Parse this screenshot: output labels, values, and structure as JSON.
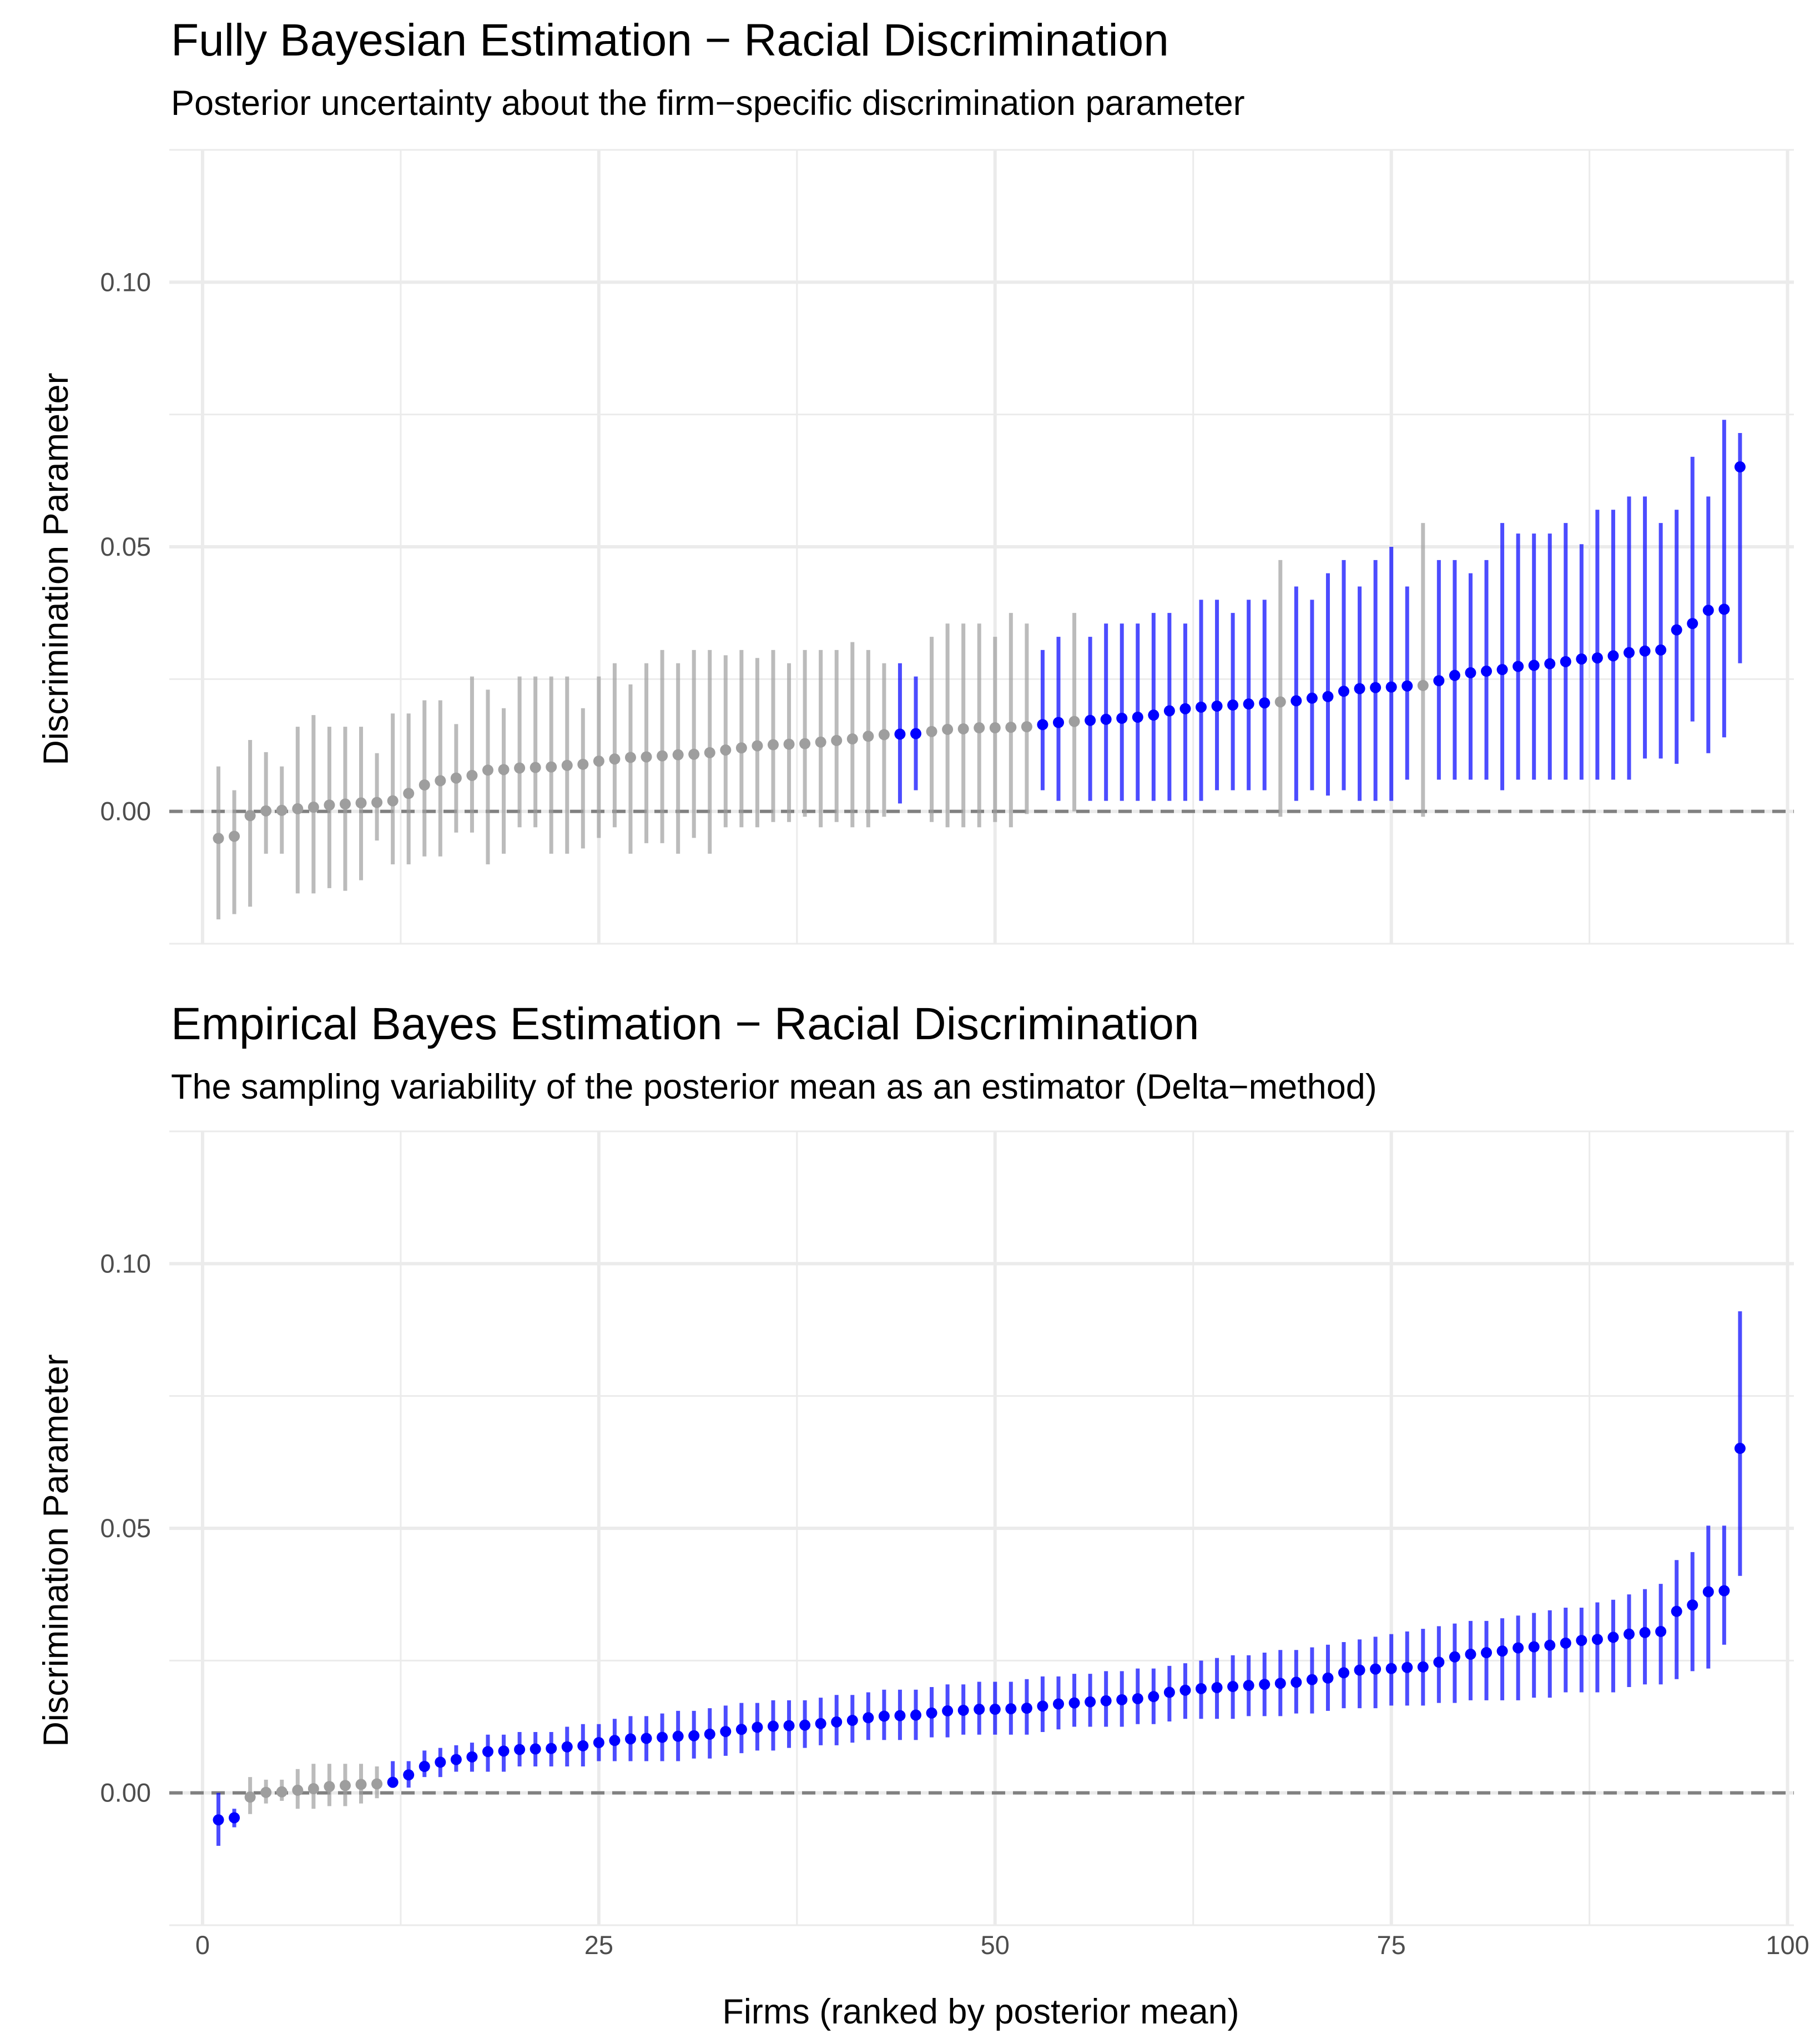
{
  "chart_data": [
    {
      "type": "errorbar-scatter",
      "title": "Fully Bayesian Estimation − Racial Discrimination",
      "subtitle": "Posterior uncertainty about the firm−specific discrimination parameter",
      "xlabel": "",
      "ylabel": "Discrimination Parameter",
      "xlim": [
        -2.1,
        100.4
      ],
      "ylim": [
        -0.025,
        0.125
      ],
      "x_ticks": [
        0,
        25,
        50,
        75,
        100
      ],
      "x_tick_labels": [],
      "y_ticks": [
        0.0,
        0.05,
        0.1
      ],
      "y_tick_labels": [
        "0.00",
        "0.05",
        "0.10"
      ],
      "reference_line": 0,
      "colors": {
        "significant": "#0000ff",
        "not_significant": "#9e9e9e",
        "interval_alpha": 0.7
      },
      "x": [
        1,
        2,
        3,
        4,
        5,
        6,
        7,
        8,
        9,
        10,
        11,
        12,
        13,
        14,
        15,
        16,
        17,
        18,
        19,
        20,
        21,
        22,
        23,
        24,
        25,
        26,
        27,
        28,
        29,
        30,
        31,
        32,
        33,
        34,
        35,
        36,
        37,
        38,
        39,
        40,
        41,
        42,
        43,
        44,
        45,
        46,
        47,
        48,
        49,
        50,
        51,
        52,
        53,
        54,
        55,
        56,
        57,
        58,
        59,
        60,
        61,
        62,
        63,
        64,
        65,
        66,
        67,
        68,
        69,
        70,
        71,
        72,
        73,
        74,
        75,
        76,
        77,
        78,
        79,
        80,
        81,
        82,
        83,
        84,
        85,
        86,
        87,
        88,
        89,
        90,
        91,
        92,
        93,
        94,
        95,
        96,
        97
      ],
      "mean": [
        -0.0051,
        -0.0047,
        -0.0008,
        0.0001,
        0.0002,
        0.0005,
        0.0008,
        0.0012,
        0.0014,
        0.0016,
        0.0017,
        0.002,
        0.0034,
        0.005,
        0.0058,
        0.0063,
        0.0068,
        0.0078,
        0.0079,
        0.0082,
        0.0083,
        0.0084,
        0.0087,
        0.0089,
        0.0095,
        0.0099,
        0.0102,
        0.0103,
        0.0105,
        0.0107,
        0.0108,
        0.0111,
        0.0116,
        0.012,
        0.0124,
        0.0126,
        0.0127,
        0.0128,
        0.0131,
        0.0134,
        0.0137,
        0.0142,
        0.0145,
        0.0146,
        0.0147,
        0.0151,
        0.0155,
        0.0156,
        0.0158,
        0.0158,
        0.0159,
        0.016,
        0.0164,
        0.0168,
        0.017,
        0.0172,
        0.0174,
        0.0176,
        0.0178,
        0.0182,
        0.019,
        0.0194,
        0.0197,
        0.0199,
        0.0201,
        0.0203,
        0.0205,
        0.0207,
        0.0209,
        0.0214,
        0.0217,
        0.0227,
        0.0232,
        0.0234,
        0.0235,
        0.0237,
        0.0238,
        0.0247,
        0.0257,
        0.0262,
        0.0265,
        0.0268,
        0.0274,
        0.0276,
        0.0279,
        0.0283,
        0.0288,
        0.029,
        0.0294,
        0.03,
        0.0303,
        0.0305,
        0.0343,
        0.0355,
        0.038,
        0.0382,
        0.0651
      ],
      "lower": [
        -0.0204,
        -0.0194,
        -0.018,
        -0.008,
        -0.008,
        -0.0155,
        -0.0155,
        -0.0145,
        -0.015,
        -0.013,
        -0.0055,
        -0.01,
        -0.01,
        -0.0085,
        -0.0085,
        -0.004,
        -0.004,
        -0.01,
        -0.008,
        -0.003,
        -0.003,
        -0.008,
        -0.008,
        -0.007,
        -0.005,
        -0.003,
        -0.008,
        -0.006,
        -0.006,
        -0.008,
        -0.005,
        -0.008,
        -0.003,
        -0.003,
        -0.003,
        -0.002,
        -0.002,
        -0.001,
        -0.003,
        -0.002,
        -0.003,
        -0.003,
        -0.001,
        0.0015,
        0.004,
        -0.002,
        -0.003,
        -0.003,
        -0.003,
        -0.002,
        -0.003,
        -0.0005,
        0.004,
        0.002,
        0.0,
        0.002,
        0.002,
        0.002,
        0.002,
        0.002,
        0.002,
        0.002,
        0.002,
        0.004,
        0.004,
        0.004,
        0.004,
        -0.001,
        0.002,
        0.004,
        0.003,
        0.004,
        0.002,
        0.002,
        0.002,
        0.006,
        -0.001,
        0.006,
        0.006,
        0.006,
        0.006,
        0.004,
        0.006,
        0.006,
        0.006,
        0.006,
        0.006,
        0.006,
        0.006,
        0.006,
        0.01,
        0.01,
        0.009,
        0.017,
        0.011,
        0.014,
        0.028
      ],
      "upper": [
        0.0085,
        0.004,
        0.0135,
        0.0112,
        0.0085,
        0.016,
        0.0182,
        0.016,
        0.016,
        0.016,
        0.011,
        0.0185,
        0.0185,
        0.021,
        0.021,
        0.0165,
        0.0255,
        0.023,
        0.0195,
        0.0255,
        0.0255,
        0.0255,
        0.0255,
        0.0195,
        0.0255,
        0.028,
        0.024,
        0.028,
        0.0305,
        0.028,
        0.0305,
        0.0305,
        0.0295,
        0.0305,
        0.029,
        0.0305,
        0.028,
        0.0305,
        0.0305,
        0.0305,
        0.032,
        0.0305,
        0.028,
        0.028,
        0.0255,
        0.033,
        0.0355,
        0.0355,
        0.0355,
        0.033,
        0.0375,
        0.0355,
        0.0305,
        0.033,
        0.0375,
        0.033,
        0.0355,
        0.0355,
        0.0355,
        0.0375,
        0.0375,
        0.0355,
        0.04,
        0.04,
        0.0375,
        0.04,
        0.04,
        0.0475,
        0.0425,
        0.04,
        0.045,
        0.0475,
        0.0425,
        0.0475,
        0.05,
        0.0425,
        0.0545,
        0.0475,
        0.0475,
        0.045,
        0.0475,
        0.0545,
        0.0525,
        0.0525,
        0.0525,
        0.0545,
        0.0505,
        0.057,
        0.057,
        0.0595,
        0.0595,
        0.0545,
        0.057,
        0.067,
        0.0595,
        0.074,
        0.0715
      ],
      "significant": [
        0,
        0,
        0,
        0,
        0,
        0,
        0,
        0,
        0,
        0,
        0,
        0,
        0,
        0,
        0,
        0,
        0,
        0,
        0,
        0,
        0,
        0,
        0,
        0,
        0,
        0,
        0,
        0,
        0,
        0,
        0,
        0,
        0,
        0,
        0,
        0,
        0,
        0,
        0,
        0,
        0,
        0,
        0,
        1,
        1,
        0,
        0,
        0,
        0,
        0,
        0,
        0,
        1,
        1,
        0,
        1,
        1,
        1,
        1,
        1,
        1,
        1,
        1,
        1,
        1,
        1,
        1,
        0,
        1,
        1,
        1,
        1,
        1,
        1,
        1,
        1,
        0,
        1,
        1,
        1,
        1,
        1,
        1,
        1,
        1,
        1,
        1,
        1,
        1,
        1,
        1,
        1,
        1,
        1,
        1,
        1,
        1
      ]
    },
    {
      "type": "errorbar-scatter",
      "title": "Empirical Bayes Estimation − Racial Discrimination",
      "subtitle": "The sampling variability of the posterior mean as an estimator (Delta−method)",
      "xlabel": "Firms (ranked by posterior mean)",
      "ylabel": "Discrimination Parameter",
      "xlim": [
        -2.1,
        100.4
      ],
      "ylim": [
        -0.025,
        0.125
      ],
      "x_ticks": [
        0,
        25,
        50,
        75,
        100
      ],
      "x_tick_labels": [
        "0",
        "25",
        "50",
        "75",
        "100"
      ],
      "y_ticks": [
        0.0,
        0.05,
        0.1
      ],
      "y_tick_labels": [
        "0.00",
        "0.05",
        "0.10"
      ],
      "reference_line": 0,
      "colors": {
        "significant": "#0000ff",
        "not_significant": "#9e9e9e",
        "interval_alpha": 0.7
      },
      "x": [
        1,
        2,
        3,
        4,
        5,
        6,
        7,
        8,
        9,
        10,
        11,
        12,
        13,
        14,
        15,
        16,
        17,
        18,
        19,
        20,
        21,
        22,
        23,
        24,
        25,
        26,
        27,
        28,
        29,
        30,
        31,
        32,
        33,
        34,
        35,
        36,
        37,
        38,
        39,
        40,
        41,
        42,
        43,
        44,
        45,
        46,
        47,
        48,
        49,
        50,
        51,
        52,
        53,
        54,
        55,
        56,
        57,
        58,
        59,
        60,
        61,
        62,
        63,
        64,
        65,
        66,
        67,
        68,
        69,
        70,
        71,
        72,
        73,
        74,
        75,
        76,
        77,
        78,
        79,
        80,
        81,
        82,
        83,
        84,
        85,
        86,
        87,
        88,
        89,
        90,
        91,
        92,
        93,
        94,
        95,
        96,
        97
      ],
      "mean": [
        -0.0051,
        -0.0047,
        -0.0008,
        0.0001,
        0.0002,
        0.0005,
        0.0008,
        0.0012,
        0.0014,
        0.0016,
        0.0017,
        0.002,
        0.0034,
        0.005,
        0.0058,
        0.0063,
        0.0068,
        0.0078,
        0.0079,
        0.0082,
        0.0083,
        0.0084,
        0.0087,
        0.0089,
        0.0095,
        0.0099,
        0.0102,
        0.0103,
        0.0105,
        0.0107,
        0.0108,
        0.0111,
        0.0116,
        0.012,
        0.0124,
        0.0126,
        0.0127,
        0.0128,
        0.0131,
        0.0134,
        0.0137,
        0.0142,
        0.0145,
        0.0146,
        0.0147,
        0.0151,
        0.0155,
        0.0156,
        0.0158,
        0.0158,
        0.0159,
        0.016,
        0.0164,
        0.0168,
        0.017,
        0.0172,
        0.0174,
        0.0176,
        0.0178,
        0.0182,
        0.019,
        0.0194,
        0.0197,
        0.0199,
        0.0201,
        0.0203,
        0.0205,
        0.0207,
        0.0209,
        0.0214,
        0.0217,
        0.0227,
        0.0232,
        0.0234,
        0.0235,
        0.0237,
        0.0238,
        0.0247,
        0.0257,
        0.0262,
        0.0265,
        0.0268,
        0.0274,
        0.0276,
        0.0279,
        0.0283,
        0.0288,
        0.029,
        0.0294,
        0.03,
        0.0303,
        0.0305,
        0.0343,
        0.0355,
        0.038,
        0.0382,
        0.0651
      ],
      "lower": [
        -0.01,
        -0.0065,
        -0.004,
        -0.002,
        -0.0015,
        -0.003,
        -0.003,
        -0.0025,
        -0.0025,
        -0.002,
        -0.001,
        0.001,
        0.001,
        0.003,
        0.003,
        0.004,
        0.004,
        0.004,
        0.004,
        0.005,
        0.005,
        0.005,
        0.005,
        0.005,
        0.006,
        0.006,
        0.006,
        0.006,
        0.006,
        0.006,
        0.0065,
        0.0065,
        0.007,
        0.0075,
        0.008,
        0.008,
        0.0085,
        0.0085,
        0.009,
        0.009,
        0.0095,
        0.01,
        0.01,
        0.01,
        0.01,
        0.0105,
        0.0105,
        0.011,
        0.011,
        0.011,
        0.011,
        0.011,
        0.0115,
        0.012,
        0.0125,
        0.0125,
        0.0125,
        0.0125,
        0.013,
        0.013,
        0.0135,
        0.014,
        0.014,
        0.014,
        0.014,
        0.0145,
        0.0145,
        0.0145,
        0.015,
        0.015,
        0.0155,
        0.016,
        0.016,
        0.016,
        0.0165,
        0.0165,
        0.0165,
        0.017,
        0.017,
        0.0175,
        0.0175,
        0.0175,
        0.0175,
        0.018,
        0.018,
        0.019,
        0.019,
        0.019,
        0.019,
        0.02,
        0.0205,
        0.0205,
        0.0215,
        0.023,
        0.0235,
        0.028,
        0.041
      ],
      "upper": [
        0.0,
        -0.003,
        0.003,
        0.0025,
        0.0025,
        0.0045,
        0.0055,
        0.0055,
        0.0055,
        0.0055,
        0.005,
        0.006,
        0.006,
        0.008,
        0.0085,
        0.009,
        0.0095,
        0.011,
        0.011,
        0.0115,
        0.0115,
        0.0115,
        0.0125,
        0.013,
        0.013,
        0.014,
        0.0145,
        0.0145,
        0.015,
        0.0155,
        0.0155,
        0.016,
        0.0165,
        0.017,
        0.017,
        0.0175,
        0.0175,
        0.0175,
        0.018,
        0.0185,
        0.0185,
        0.019,
        0.0195,
        0.0195,
        0.0195,
        0.02,
        0.0205,
        0.0205,
        0.021,
        0.021,
        0.021,
        0.0215,
        0.022,
        0.022,
        0.0225,
        0.0225,
        0.023,
        0.023,
        0.0235,
        0.0235,
        0.024,
        0.0245,
        0.025,
        0.0255,
        0.026,
        0.026,
        0.0265,
        0.027,
        0.027,
        0.0275,
        0.028,
        0.0285,
        0.029,
        0.0295,
        0.03,
        0.0305,
        0.031,
        0.0315,
        0.032,
        0.0325,
        0.0325,
        0.033,
        0.0335,
        0.034,
        0.0345,
        0.035,
        0.035,
        0.036,
        0.0365,
        0.0375,
        0.0385,
        0.0395,
        0.044,
        0.0455,
        0.0505,
        0.0505,
        0.091
      ],
      "significant": [
        1,
        1,
        0,
        0,
        0,
        0,
        0,
        0,
        0,
        0,
        0,
        1,
        1,
        1,
        1,
        1,
        1,
        1,
        1,
        1,
        1,
        1,
        1,
        1,
        1,
        1,
        1,
        1,
        1,
        1,
        1,
        1,
        1,
        1,
        1,
        1,
        1,
        1,
        1,
        1,
        1,
        1,
        1,
        1,
        1,
        1,
        1,
        1,
        1,
        1,
        1,
        1,
        1,
        1,
        1,
        1,
        1,
        1,
        1,
        1,
        1,
        1,
        1,
        1,
        1,
        1,
        1,
        1,
        1,
        1,
        1,
        1,
        1,
        1,
        1,
        1,
        1,
        1,
        1,
        1,
        1,
        1,
        1,
        1,
        1,
        1,
        1,
        1,
        1,
        1,
        1,
        1,
        1,
        1,
        1,
        1,
        1
      ]
    }
  ]
}
